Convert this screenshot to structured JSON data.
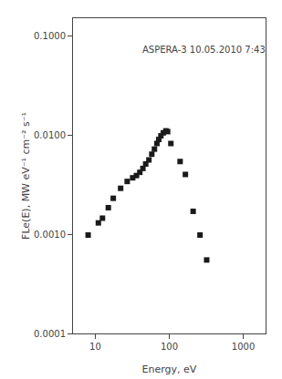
{
  "chart_data": {
    "type": "scatter",
    "xlabel": "Energy, eV",
    "ylabel": "FLe(E), MW eV⁻¹ cm⁻² s⁻¹",
    "annotation": "ASPERA-3 10.05.2010 7:43",
    "x": [
      8.0,
      11.0,
      12.5,
      15.0,
      17.5,
      22.0,
      27.0,
      32.0,
      36.0,
      40.0,
      44.0,
      48.0,
      53.0,
      58.0,
      63.0,
      68.0,
      72.0,
      77.0,
      83.0,
      90.0,
      95.0,
      105.0,
      140.0,
      165.0,
      210.0,
      260.0,
      320.0
    ],
    "values": [
      0.00098,
      0.0013,
      0.00145,
      0.00185,
      0.0023,
      0.0029,
      0.0034,
      0.0037,
      0.0039,
      0.0042,
      0.0046,
      0.0051,
      0.0056,
      0.0064,
      0.0072,
      0.0082,
      0.009,
      0.0098,
      0.0105,
      0.011,
      0.0108,
      0.0082,
      0.0054,
      0.004,
      0.0017,
      0.00098,
      0.00055
    ],
    "xlim": [
      5,
      2000
    ],
    "ylim": [
      0.0001,
      0.15
    ],
    "xticks": [
      10,
      100,
      1000
    ],
    "yticks": [
      0.0001,
      {
        "value": 0.001,
        "label": "0.0010"
      },
      {
        "value": 0.01,
        "label": "0.0100"
      },
      {
        "value": 0.1,
        "label": "0.1000"
      }
    ],
    "log": true,
    "grid": false,
    "color": "#1a1a1a",
    "marker": "square"
  }
}
